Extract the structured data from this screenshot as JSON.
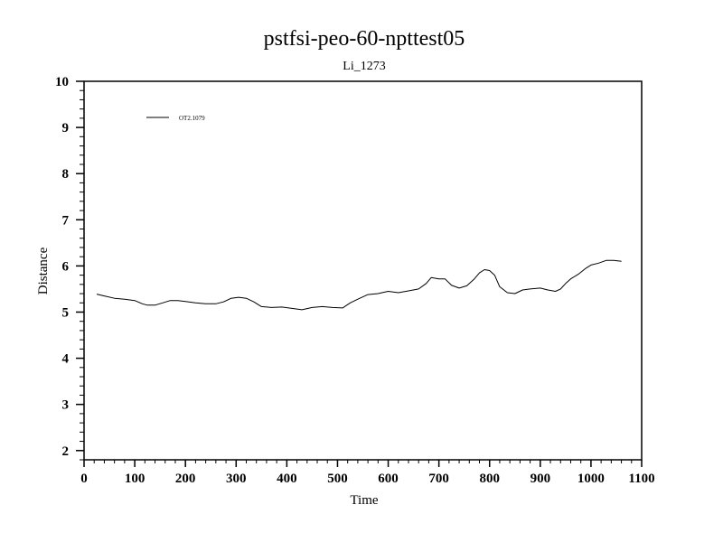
{
  "chart_data": {
    "type": "line",
    "title": "pstfsi-peo-60-npttest05",
    "subtitle": "Li_1273",
    "xlabel": "Time",
    "ylabel": "Distance",
    "xlim": [
      0,
      1100
    ],
    "ylim": [
      1.8,
      10
    ],
    "xticks": [
      "0",
      "100",
      "200",
      "300",
      "400",
      "500",
      "600",
      "700",
      "800",
      "900",
      "1000",
      "1100"
    ],
    "yticks": [
      "2",
      "3",
      "4",
      "5",
      "6",
      "7",
      "8",
      "9",
      "10"
    ],
    "legend_position": "top-left",
    "grid": false,
    "series": [
      {
        "name": "OT2.1079",
        "color": "#000000",
        "x": [
          25,
          40,
          60,
          80,
          100,
          115,
          125,
          140,
          155,
          170,
          185,
          200,
          220,
          240,
          260,
          275,
          290,
          305,
          320,
          335,
          350,
          370,
          390,
          410,
          430,
          450,
          470,
          490,
          510,
          525,
          540,
          560,
          580,
          600,
          620,
          640,
          660,
          675,
          685,
          700,
          712,
          725,
          740,
          755,
          770,
          780,
          790,
          800,
          810,
          820,
          835,
          850,
          865,
          880,
          900,
          915,
          930,
          940,
          950,
          960,
          975,
          990,
          1000,
          1015,
          1030,
          1045,
          1060
        ],
        "y": [
          5.39,
          5.35,
          5.3,
          5.28,
          5.25,
          5.18,
          5.15,
          5.15,
          5.2,
          5.25,
          5.25,
          5.23,
          5.2,
          5.18,
          5.18,
          5.22,
          5.3,
          5.32,
          5.3,
          5.22,
          5.12,
          5.1,
          5.11,
          5.08,
          5.05,
          5.1,
          5.12,
          5.1,
          5.09,
          5.2,
          5.28,
          5.38,
          5.4,
          5.45,
          5.42,
          5.46,
          5.5,
          5.62,
          5.75,
          5.72,
          5.72,
          5.58,
          5.52,
          5.57,
          5.72,
          5.85,
          5.92,
          5.9,
          5.8,
          5.55,
          5.42,
          5.4,
          5.48,
          5.5,
          5.52,
          5.48,
          5.45,
          5.5,
          5.62,
          5.72,
          5.82,
          5.95,
          6.02,
          6.06,
          6.12,
          6.12,
          6.1
        ]
      }
    ]
  }
}
